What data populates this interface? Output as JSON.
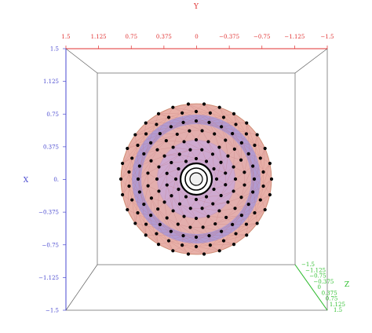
{
  "axes": {
    "y_top": {
      "name": "Y",
      "color": "#e03030",
      "ticks": [
        "1.5",
        "1.125",
        "0.75",
        "0.375",
        "0",
        "−0.375",
        "−0.75",
        "−1.125",
        "−1.5"
      ]
    },
    "x_left": {
      "name": "X",
      "color": "#4a4ad0",
      "ticks": [
        "1.5",
        "1.125",
        "0.75",
        "0.375",
        "0.",
        "−0.375",
        "−0.75",
        "−1.125",
        "−1.5"
      ]
    },
    "z_right": {
      "name": "Z",
      "color": "#30c030",
      "ticks": [
        "−1.5",
        "−1.125",
        "−0.75",
        "−0.375",
        "0",
        "0.375",
        "0.75",
        "1.125",
        "1.5"
      ]
    }
  },
  "model": {
    "fill_outer": "#e8b0a8",
    "fill_band": "#a898d8",
    "edge_color": "#c07070",
    "vertex_color": "#000000"
  }
}
